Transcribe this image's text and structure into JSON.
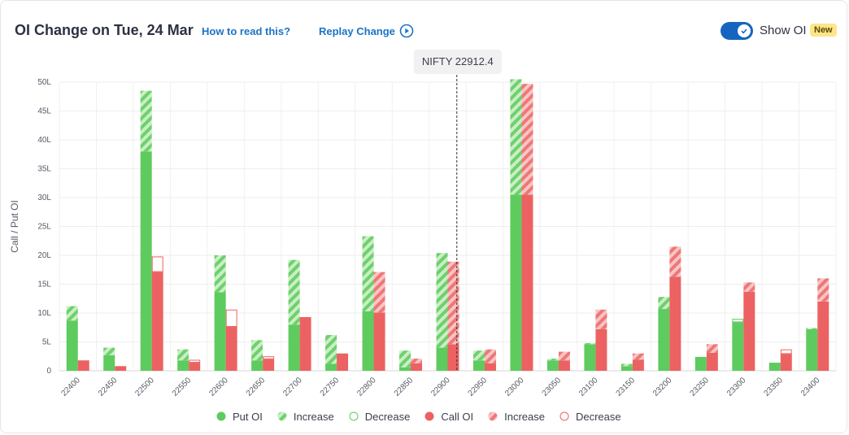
{
  "header": {
    "title": "OI Change on Tue, 24 Mar",
    "help_link": "How to read this?",
    "replay_label": "Replay Change",
    "toggle_label": "Show OI",
    "badge": "New"
  },
  "colors": {
    "put": "#5ecb5e",
    "put_light": "#b6e8b3",
    "call": "#ec6262",
    "call_light": "#f6aaaa"
  },
  "legend": [
    "Put OI",
    "Increase",
    "Decrease",
    "Call OI",
    "Increase",
    "Decrease"
  ],
  "chart_data": {
    "type": "bar",
    "ylabel": "Call / Put OI",
    "ylim": [
      0,
      50
    ],
    "yticks": [
      "0",
      "5L",
      "10L",
      "15L",
      "20L",
      "25L",
      "30L",
      "35L",
      "40L",
      "45L",
      "50L"
    ],
    "categories": [
      "22400",
      "22450",
      "22500",
      "22550",
      "22600",
      "22650",
      "22700",
      "22750",
      "22800",
      "22850",
      "22900",
      "22950",
      "23000",
      "23050",
      "23100",
      "23150",
      "23200",
      "23250",
      "23300",
      "23350",
      "23400"
    ],
    "spot_label": "NIFTY 22912.4",
    "spot_value": 22912.4,
    "put_oi": [
      11.2,
      4.0,
      48.5,
      3.7,
      20.0,
      5.3,
      19.2,
      6.2,
      23.3,
      3.5,
      20.4,
      3.5,
      50.5,
      2.1,
      4.8,
      1.2,
      12.8,
      2.4,
      8.4,
      1.4,
      7.4
    ],
    "put_change": [
      2.5,
      1.3,
      10.5,
      1.9,
      6.4,
      3.5,
      11.2,
      5.0,
      13.0,
      2.9,
      16.4,
      1.7,
      20.0,
      0.3,
      0.2,
      0.4,
      2.1,
      0.0,
      -0.6,
      0.0,
      0.2
    ],
    "call_oi": [
      1.8,
      0.8,
      17.1,
      1.4,
      7.6,
      2.0,
      9.3,
      3.0,
      17.1,
      2.1,
      18.9,
      3.7,
      49.7,
      3.3,
      10.6,
      3.0,
      21.5,
      4.6,
      15.3,
      2.9,
      16.0
    ],
    "call_change": [
      0.0,
      0.0,
      -2.7,
      -0.5,
      -3.0,
      -0.5,
      0.0,
      0.0,
      7.0,
      0.8,
      14.3,
      2.4,
      19.2,
      1.5,
      3.4,
      1.1,
      5.2,
      1.5,
      1.6,
      -0.8,
      4.0
    ]
  }
}
